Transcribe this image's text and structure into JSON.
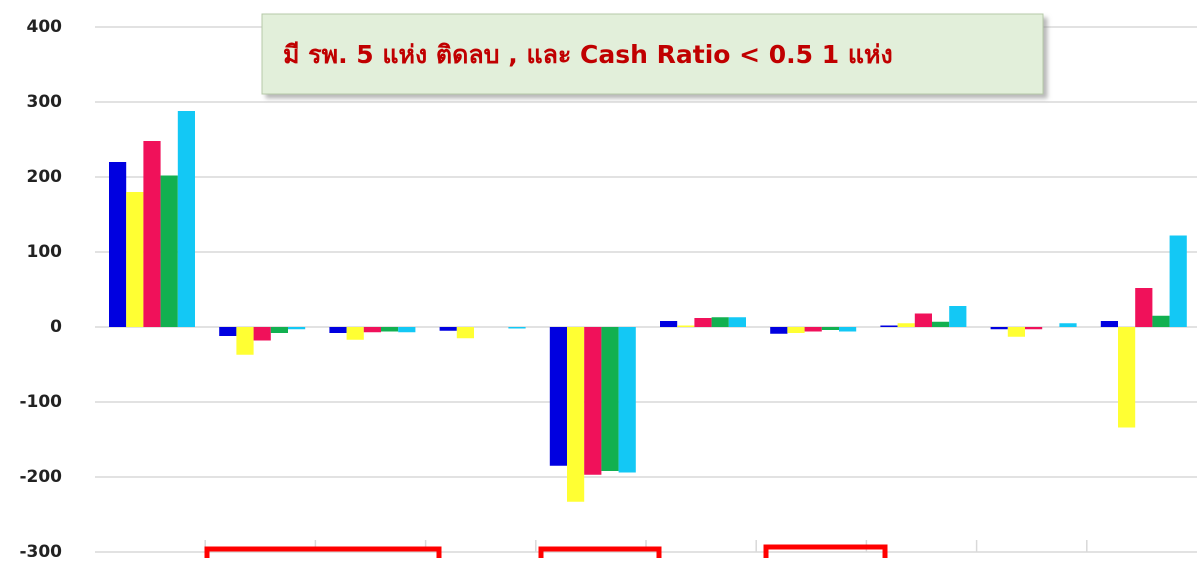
{
  "chart_data": {
    "type": "bar",
    "annotation": "มี รพ. 5 แห่ง ติดลบ ,  และ Cash Ratio < 0.5  1 แห่ง",
    "categories": [
      null,
      null,
      null,
      null,
      null,
      null,
      null,
      null,
      null,
      null
    ],
    "series": [
      {
        "color": "#0000e0",
        "values": [
          220,
          -12,
          -8,
          -5,
          -185,
          8,
          -9,
          2,
          -3,
          8
        ]
      },
      {
        "color": "#ffff33",
        "values": [
          180,
          -37,
          -17,
          -15,
          -233,
          2,
          -8,
          5,
          -13,
          -134
        ]
      },
      {
        "color": "#f0115a",
        "values": [
          248,
          -18,
          -7,
          0,
          -197,
          12,
          -6,
          18,
          -3,
          52
        ]
      },
      {
        "color": "#12b050",
        "values": [
          202,
          -8,
          -6,
          0,
          -192,
          13,
          -4,
          7,
          0,
          15
        ]
      },
      {
        "color": "#13c8f5",
        "values": [
          288,
          -3,
          -7,
          -2,
          -194,
          13,
          -6,
          28,
          5,
          122
        ]
      }
    ],
    "ylim": [
      -300,
      400
    ],
    "yticks": [
      -300,
      -200,
      -100,
      0,
      100,
      200,
      300,
      400
    ],
    "grid": true
  }
}
